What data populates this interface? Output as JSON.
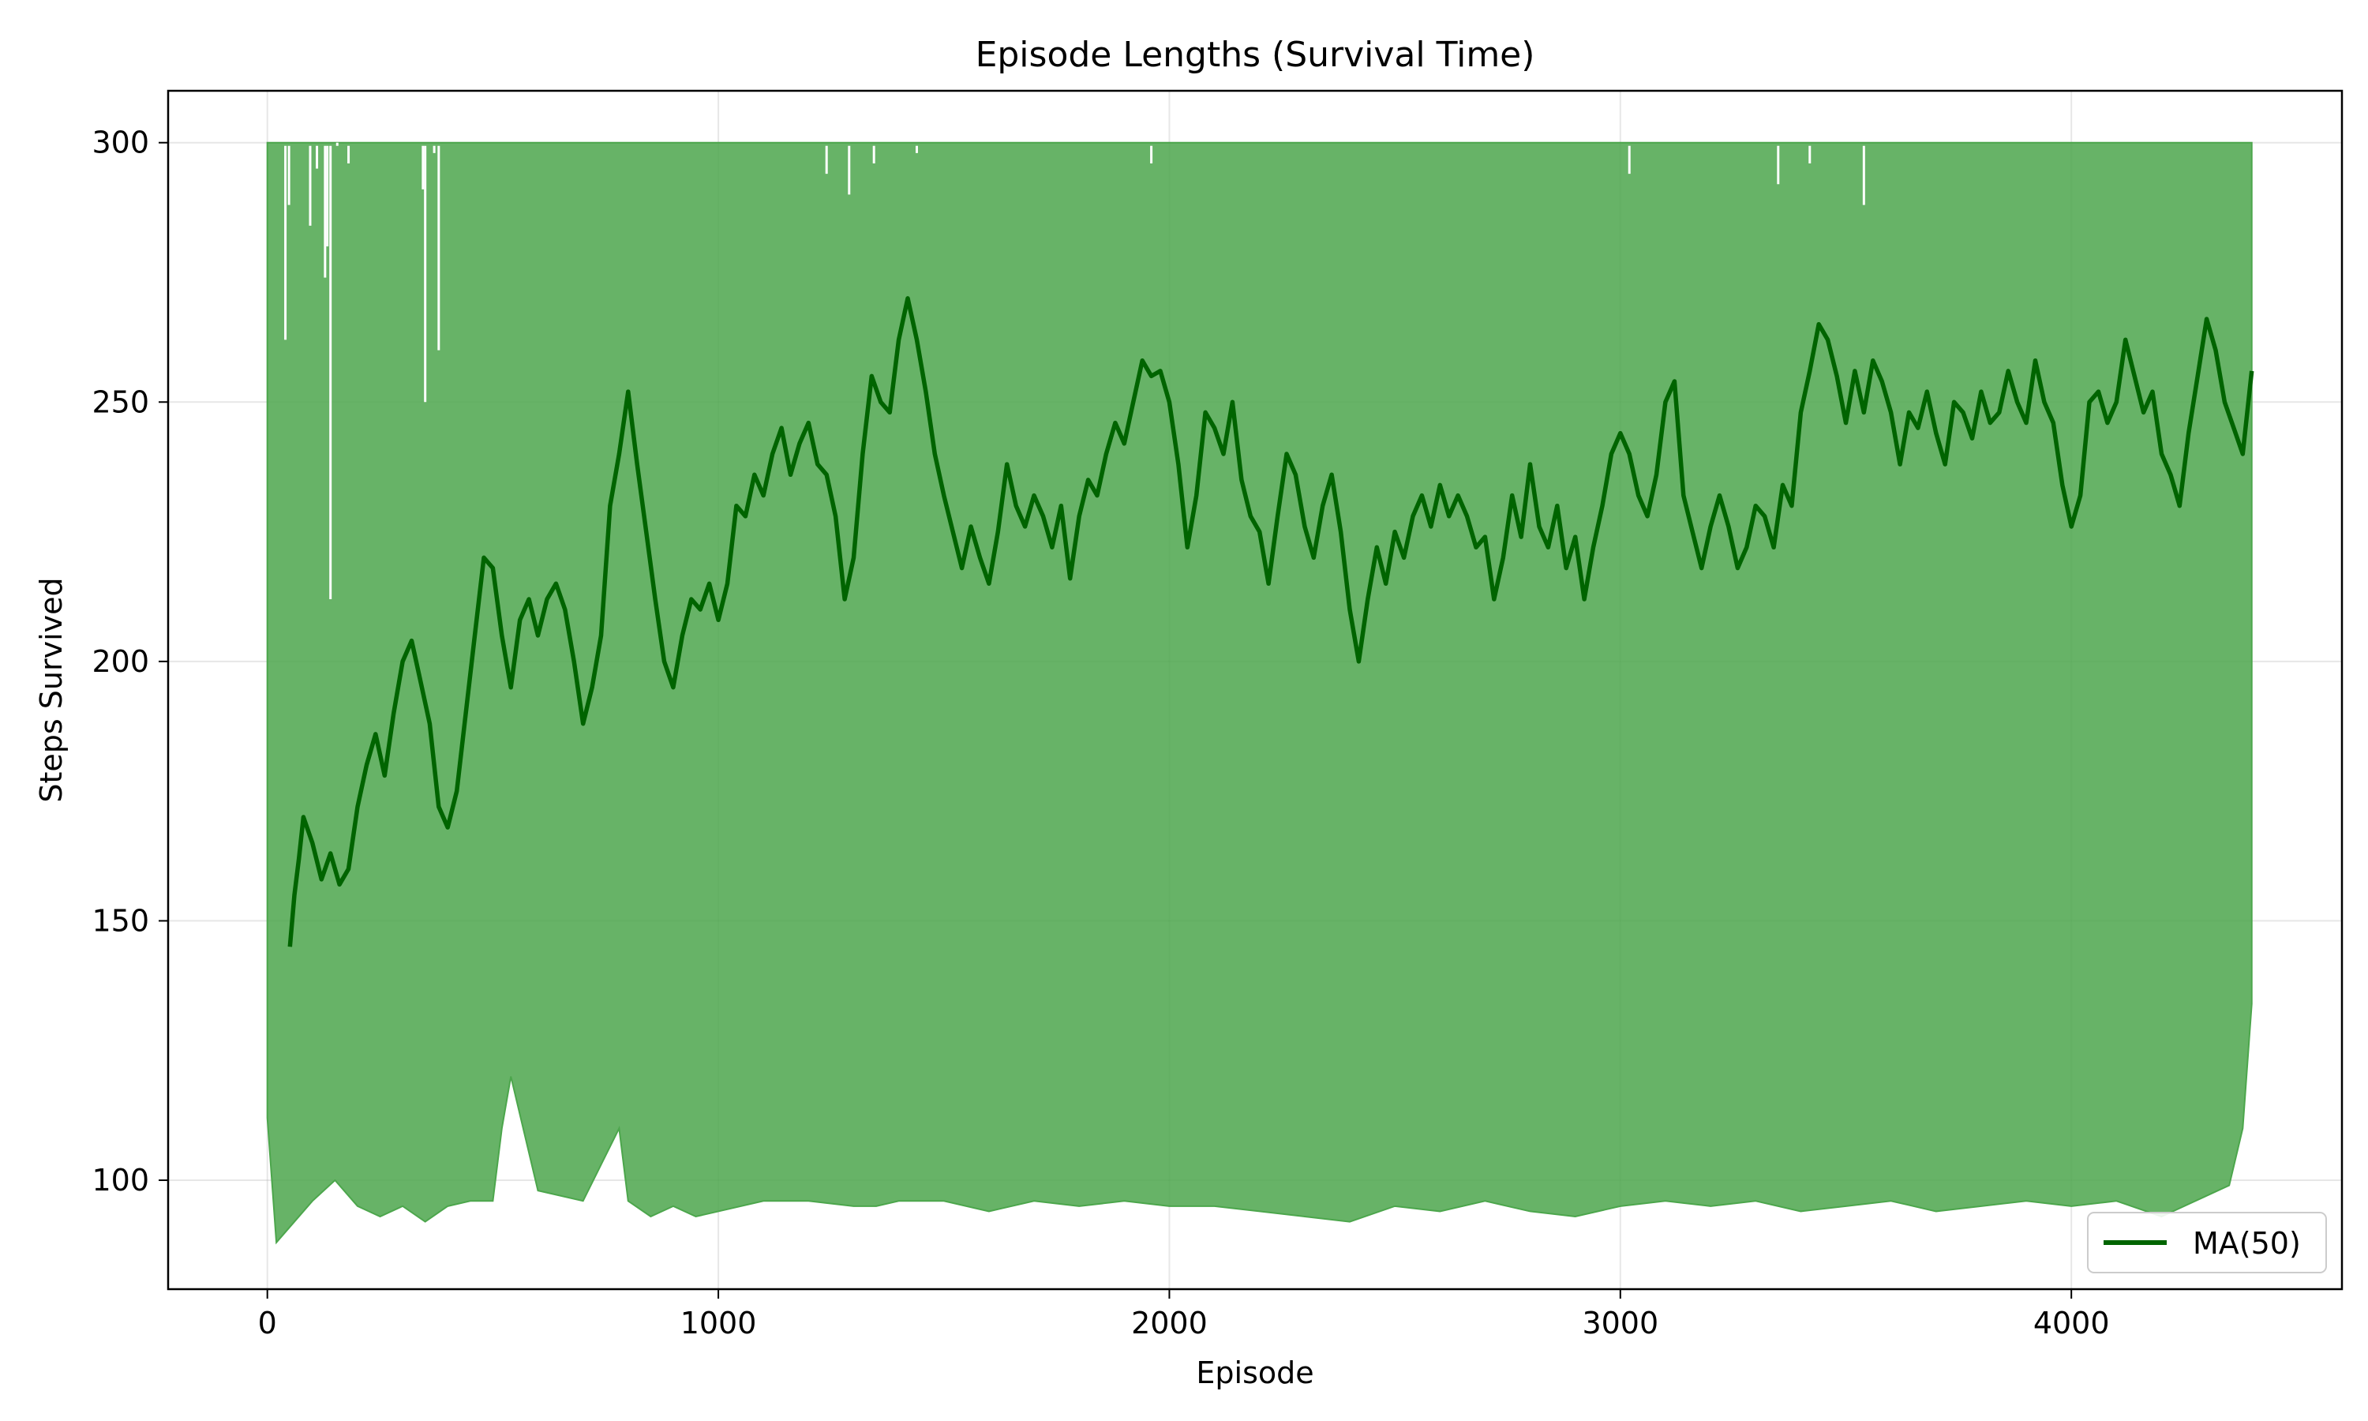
{
  "chart_data": {
    "type": "line",
    "title": "Episode Lengths (Survival Time)",
    "xlabel": "Episode",
    "ylabel": "Steps Survived",
    "xlim": [
      -220,
      4600
    ],
    "ylim": [
      79,
      310
    ],
    "xticks": [
      0,
      1000,
      2000,
      3000,
      4000
    ],
    "yticks": [
      100,
      150,
      200,
      250,
      300
    ],
    "grid": true,
    "legend": {
      "placement": "bottom-right",
      "entries": [
        "MA(50)"
      ]
    },
    "series": [
      {
        "role": "raw",
        "color": "#4ca64c",
        "upper": 300,
        "lower": [
          [
            0,
            112
          ],
          [
            20,
            88
          ],
          [
            60,
            92
          ],
          [
            100,
            96
          ],
          [
            150,
            100
          ],
          [
            200,
            95
          ],
          [
            250,
            93
          ],
          [
            300,
            95
          ],
          [
            350,
            92
          ],
          [
            400,
            95
          ],
          [
            450,
            96
          ],
          [
            500,
            96
          ],
          [
            520,
            110
          ],
          [
            540,
            120
          ],
          [
            600,
            98
          ],
          [
            700,
            96
          ],
          [
            780,
            110
          ],
          [
            800,
            96
          ],
          [
            850,
            93
          ],
          [
            900,
            95
          ],
          [
            950,
            93
          ],
          [
            1000,
            94
          ],
          [
            1100,
            96
          ],
          [
            1200,
            96
          ],
          [
            1300,
            95
          ],
          [
            1350,
            95
          ],
          [
            1400,
            96
          ],
          [
            1500,
            96
          ],
          [
            1600,
            94
          ],
          [
            1700,
            96
          ],
          [
            1800,
            95
          ],
          [
            1900,
            96
          ],
          [
            2000,
            95
          ],
          [
            2100,
            95
          ],
          [
            2200,
            94
          ],
          [
            2300,
            93
          ],
          [
            2400,
            92
          ],
          [
            2500,
            95
          ],
          [
            2600,
            94
          ],
          [
            2700,
            96
          ],
          [
            2800,
            94
          ],
          [
            2900,
            93
          ],
          [
            3000,
            95
          ],
          [
            3100,
            96
          ],
          [
            3200,
            95
          ],
          [
            3300,
            96
          ],
          [
            3400,
            94
          ],
          [
            3500,
            95
          ],
          [
            3600,
            96
          ],
          [
            3700,
            94
          ],
          [
            3800,
            95
          ],
          [
            3900,
            96
          ],
          [
            4000,
            95
          ],
          [
            4100,
            96
          ],
          [
            4200,
            93
          ],
          [
            4300,
            97
          ],
          [
            4350,
            99
          ],
          [
            4380,
            110
          ],
          [
            4400,
            134
          ]
        ],
        "start": [
          0,
          146
        ],
        "gaps": [
          [
            40,
            262
          ],
          [
            48,
            288
          ],
          [
            95,
            284
          ],
          [
            110,
            295
          ],
          [
            128,
            274
          ],
          [
            133,
            280
          ],
          [
            140,
            212
          ],
          [
            155,
            300
          ],
          [
            180,
            296
          ],
          [
            345,
            291
          ],
          [
            350,
            250
          ],
          [
            370,
            298
          ],
          [
            380,
            260
          ],
          [
            1240,
            294
          ],
          [
            1290,
            290
          ],
          [
            1345,
            296
          ],
          [
            1440,
            298
          ],
          [
            1960,
            296
          ],
          [
            3020,
            294
          ],
          [
            3350,
            292
          ],
          [
            3420,
            296
          ],
          [
            3540,
            288
          ]
        ]
      },
      {
        "name": "MA(50)",
        "role": "ma",
        "color": "#006400",
        "points": [
          [
            50,
            145
          ],
          [
            60,
            155
          ],
          [
            70,
            162
          ],
          [
            80,
            170
          ],
          [
            100,
            165
          ],
          [
            120,
            158
          ],
          [
            140,
            163
          ],
          [
            160,
            157
          ],
          [
            180,
            160
          ],
          [
            200,
            172
          ],
          [
            220,
            180
          ],
          [
            240,
            186
          ],
          [
            260,
            178
          ],
          [
            280,
            190
          ],
          [
            300,
            200
          ],
          [
            320,
            204
          ],
          [
            340,
            196
          ],
          [
            360,
            188
          ],
          [
            380,
            172
          ],
          [
            400,
            168
          ],
          [
            420,
            175
          ],
          [
            440,
            190
          ],
          [
            460,
            205
          ],
          [
            480,
            220
          ],
          [
            500,
            218
          ],
          [
            520,
            205
          ],
          [
            540,
            195
          ],
          [
            560,
            208
          ],
          [
            580,
            212
          ],
          [
            600,
            205
          ],
          [
            620,
            212
          ],
          [
            640,
            215
          ],
          [
            660,
            210
          ],
          [
            680,
            200
          ],
          [
            700,
            188
          ],
          [
            720,
            195
          ],
          [
            740,
            205
          ],
          [
            760,
            230
          ],
          [
            780,
            240
          ],
          [
            800,
            252
          ],
          [
            820,
            238
          ],
          [
            840,
            225
          ],
          [
            860,
            212
          ],
          [
            880,
            200
          ],
          [
            900,
            195
          ],
          [
            920,
            205
          ],
          [
            940,
            212
          ],
          [
            960,
            210
          ],
          [
            980,
            215
          ],
          [
            1000,
            208
          ],
          [
            1020,
            215
          ],
          [
            1040,
            230
          ],
          [
            1060,
            228
          ],
          [
            1080,
            236
          ],
          [
            1100,
            232
          ],
          [
            1120,
            240
          ],
          [
            1140,
            245
          ],
          [
            1160,
            236
          ],
          [
            1180,
            242
          ],
          [
            1200,
            246
          ],
          [
            1220,
            238
          ],
          [
            1240,
            236
          ],
          [
            1260,
            228
          ],
          [
            1280,
            212
          ],
          [
            1300,
            220
          ],
          [
            1320,
            240
          ],
          [
            1340,
            255
          ],
          [
            1360,
            250
          ],
          [
            1380,
            248
          ],
          [
            1400,
            262
          ],
          [
            1420,
            270
          ],
          [
            1440,
            262
          ],
          [
            1460,
            252
          ],
          [
            1480,
            240
          ],
          [
            1500,
            232
          ],
          [
            1520,
            225
          ],
          [
            1540,
            218
          ],
          [
            1560,
            226
          ],
          [
            1580,
            220
          ],
          [
            1600,
            215
          ],
          [
            1620,
            225
          ],
          [
            1640,
            238
          ],
          [
            1660,
            230
          ],
          [
            1680,
            226
          ],
          [
            1700,
            232
          ],
          [
            1720,
            228
          ],
          [
            1740,
            222
          ],
          [
            1760,
            230
          ],
          [
            1780,
            216
          ],
          [
            1800,
            228
          ],
          [
            1820,
            235
          ],
          [
            1840,
            232
          ],
          [
            1860,
            240
          ],
          [
            1880,
            246
          ],
          [
            1900,
            242
          ],
          [
            1920,
            250
          ],
          [
            1940,
            258
          ],
          [
            1960,
            255
          ],
          [
            1980,
            256
          ],
          [
            2000,
            250
          ],
          [
            2020,
            238
          ],
          [
            2040,
            222
          ],
          [
            2060,
            232
          ],
          [
            2080,
            248
          ],
          [
            2100,
            245
          ],
          [
            2120,
            240
          ],
          [
            2140,
            250
          ],
          [
            2160,
            235
          ],
          [
            2180,
            228
          ],
          [
            2200,
            225
          ],
          [
            2220,
            215
          ],
          [
            2240,
            228
          ],
          [
            2260,
            240
          ],
          [
            2280,
            236
          ],
          [
            2300,
            226
          ],
          [
            2320,
            220
          ],
          [
            2340,
            230
          ],
          [
            2360,
            236
          ],
          [
            2380,
            225
          ],
          [
            2400,
            210
          ],
          [
            2420,
            200
          ],
          [
            2440,
            212
          ],
          [
            2460,
            222
          ],
          [
            2480,
            215
          ],
          [
            2500,
            225
          ],
          [
            2520,
            220
          ],
          [
            2540,
            228
          ],
          [
            2560,
            232
          ],
          [
            2580,
            226
          ],
          [
            2600,
            234
          ],
          [
            2620,
            228
          ],
          [
            2640,
            232
          ],
          [
            2660,
            228
          ],
          [
            2680,
            222
          ],
          [
            2700,
            224
          ],
          [
            2720,
            212
          ],
          [
            2740,
            220
          ],
          [
            2760,
            232
          ],
          [
            2780,
            224
          ],
          [
            2800,
            238
          ],
          [
            2820,
            226
          ],
          [
            2840,
            222
          ],
          [
            2860,
            230
          ],
          [
            2880,
            218
          ],
          [
            2900,
            224
          ],
          [
            2920,
            212
          ],
          [
            2940,
            222
          ],
          [
            2960,
            230
          ],
          [
            2980,
            240
          ],
          [
            3000,
            244
          ],
          [
            3020,
            240
          ],
          [
            3040,
            232
          ],
          [
            3060,
            228
          ],
          [
            3080,
            236
          ],
          [
            3100,
            250
          ],
          [
            3120,
            254
          ],
          [
            3140,
            232
          ],
          [
            3160,
            225
          ],
          [
            3180,
            218
          ],
          [
            3200,
            226
          ],
          [
            3220,
            232
          ],
          [
            3240,
            226
          ],
          [
            3260,
            218
          ],
          [
            3280,
            222
          ],
          [
            3300,
            230
          ],
          [
            3320,
            228
          ],
          [
            3340,
            222
          ],
          [
            3360,
            234
          ],
          [
            3380,
            230
          ],
          [
            3400,
            248
          ],
          [
            3420,
            256
          ],
          [
            3440,
            265
          ],
          [
            3460,
            262
          ],
          [
            3480,
            255
          ],
          [
            3500,
            246
          ],
          [
            3520,
            256
          ],
          [
            3540,
            248
          ],
          [
            3560,
            258
          ],
          [
            3580,
            254
          ],
          [
            3600,
            248
          ],
          [
            3620,
            238
          ],
          [
            3640,
            248
          ],
          [
            3660,
            245
          ],
          [
            3680,
            252
          ],
          [
            3700,
            244
          ],
          [
            3720,
            238
          ],
          [
            3740,
            250
          ],
          [
            3760,
            248
          ],
          [
            3780,
            243
          ],
          [
            3800,
            252
          ],
          [
            3820,
            246
          ],
          [
            3840,
            248
          ],
          [
            3860,
            256
          ],
          [
            3880,
            250
          ],
          [
            3900,
            246
          ],
          [
            3920,
            258
          ],
          [
            3940,
            250
          ],
          [
            3960,
            246
          ],
          [
            3980,
            234
          ],
          [
            4000,
            226
          ],
          [
            4020,
            232
          ],
          [
            4040,
            250
          ],
          [
            4060,
            252
          ],
          [
            4080,
            246
          ],
          [
            4100,
            250
          ],
          [
            4120,
            262
          ],
          [
            4140,
            255
          ],
          [
            4160,
            248
          ],
          [
            4180,
            252
          ],
          [
            4200,
            240
          ],
          [
            4220,
            236
          ],
          [
            4240,
            230
          ],
          [
            4260,
            244
          ],
          [
            4280,
            255
          ],
          [
            4300,
            266
          ],
          [
            4320,
            260
          ],
          [
            4340,
            250
          ],
          [
            4360,
            245
          ],
          [
            4380,
            240
          ],
          [
            4400,
            256
          ]
        ]
      }
    ]
  }
}
